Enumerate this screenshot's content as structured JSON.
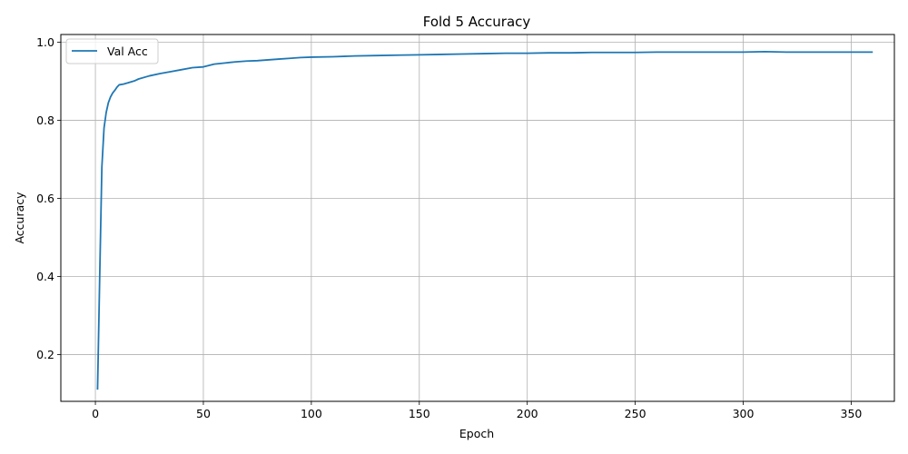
{
  "chart_data": {
    "type": "line",
    "title": "Fold 5 Accuracy",
    "xlabel": "Epoch",
    "ylabel": "Accuracy",
    "xlim": [
      -16,
      370
    ],
    "ylim": [
      0.08,
      1.02
    ],
    "xticks": [
      0,
      50,
      100,
      150,
      200,
      250,
      300,
      350
    ],
    "yticks": [
      0.2,
      0.4,
      0.6,
      0.8,
      1.0
    ],
    "xtick_labels": [
      "0",
      "50",
      "100",
      "150",
      "200",
      "250",
      "300",
      "350"
    ],
    "ytick_labels": [
      "0.2",
      "0.4",
      "0.6",
      "0.8",
      "1.0"
    ],
    "grid": true,
    "legend_position": "top-left",
    "series": [
      {
        "name": "Val Acc",
        "color": "#1f77b4",
        "points": [
          [
            1,
            0.11
          ],
          [
            2,
            0.4
          ],
          [
            3,
            0.68
          ],
          [
            4,
            0.78
          ],
          [
            5,
            0.82
          ],
          [
            6,
            0.845
          ],
          [
            7,
            0.86
          ],
          [
            8,
            0.87
          ],
          [
            9,
            0.877
          ],
          [
            10,
            0.885
          ],
          [
            11,
            0.891
          ],
          [
            13,
            0.893
          ],
          [
            15,
            0.896
          ],
          [
            18,
            0.901
          ],
          [
            20,
            0.906
          ],
          [
            25,
            0.914
          ],
          [
            30,
            0.92
          ],
          [
            35,
            0.925
          ],
          [
            40,
            0.93
          ],
          [
            45,
            0.935
          ],
          [
            50,
            0.937
          ],
          [
            55,
            0.944
          ],
          [
            60,
            0.947
          ],
          [
            65,
            0.95
          ],
          [
            70,
            0.952
          ],
          [
            75,
            0.953
          ],
          [
            80,
            0.955
          ],
          [
            85,
            0.957
          ],
          [
            90,
            0.959
          ],
          [
            95,
            0.961
          ],
          [
            100,
            0.962
          ],
          [
            110,
            0.963
          ],
          [
            120,
            0.965
          ],
          [
            130,
            0.966
          ],
          [
            140,
            0.967
          ],
          [
            150,
            0.968
          ],
          [
            160,
            0.969
          ],
          [
            170,
            0.97
          ],
          [
            180,
            0.971
          ],
          [
            190,
            0.972
          ],
          [
            200,
            0.972
          ],
          [
            210,
            0.973
          ],
          [
            220,
            0.973
          ],
          [
            230,
            0.974
          ],
          [
            240,
            0.974
          ],
          [
            250,
            0.974
          ],
          [
            260,
            0.975
          ],
          [
            270,
            0.975
          ],
          [
            280,
            0.975
          ],
          [
            290,
            0.975
          ],
          [
            300,
            0.975
          ],
          [
            310,
            0.976
          ],
          [
            320,
            0.975
          ],
          [
            330,
            0.975
          ],
          [
            340,
            0.975
          ],
          [
            350,
            0.975
          ],
          [
            360,
            0.975
          ]
        ]
      }
    ]
  }
}
